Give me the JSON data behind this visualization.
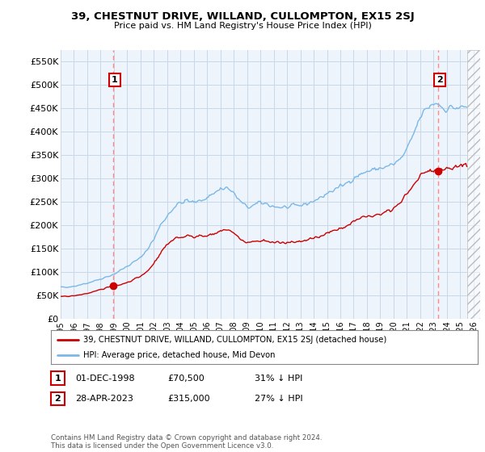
{
  "title": "39, CHESTNUT DRIVE, WILLAND, CULLOMPTON, EX15 2SJ",
  "subtitle": "Price paid vs. HM Land Registry's House Price Index (HPI)",
  "ylim": [
    0,
    575000
  ],
  "yticks": [
    0,
    50000,
    100000,
    150000,
    200000,
    250000,
    300000,
    350000,
    400000,
    450000,
    500000,
    550000
  ],
  "ytick_labels": [
    "£0",
    "£50K",
    "£100K",
    "£150K",
    "£200K",
    "£250K",
    "£300K",
    "£350K",
    "£400K",
    "£450K",
    "£500K",
    "£550K"
  ],
  "x_start_year": 1995,
  "x_end_year": 2026,
  "sale1_date": 1998.92,
  "sale1_price": 70500,
  "sale2_date": 2023.32,
  "sale2_price": 315000,
  "legend_line1": "39, CHESTNUT DRIVE, WILLAND, CULLOMPTON, EX15 2SJ (detached house)",
  "legend_line2": "HPI: Average price, detached house, Mid Devon",
  "label1_date": "01-DEC-1998",
  "label1_price": "£70,500",
  "label1_pct": "31% ↓ HPI",
  "label2_date": "28-APR-2023",
  "label2_price": "£315,000",
  "label2_pct": "27% ↓ HPI",
  "footer": "Contains HM Land Registry data © Crown copyright and database right 2024.\nThis data is licensed under the Open Government Licence v3.0.",
  "hpi_color": "#7ab8e8",
  "sold_color": "#cc0000",
  "vline_color": "#ff8888",
  "bg_color": "#ffffff",
  "plot_bg_color": "#eef4fb",
  "grid_color": "#c8d8e8"
}
